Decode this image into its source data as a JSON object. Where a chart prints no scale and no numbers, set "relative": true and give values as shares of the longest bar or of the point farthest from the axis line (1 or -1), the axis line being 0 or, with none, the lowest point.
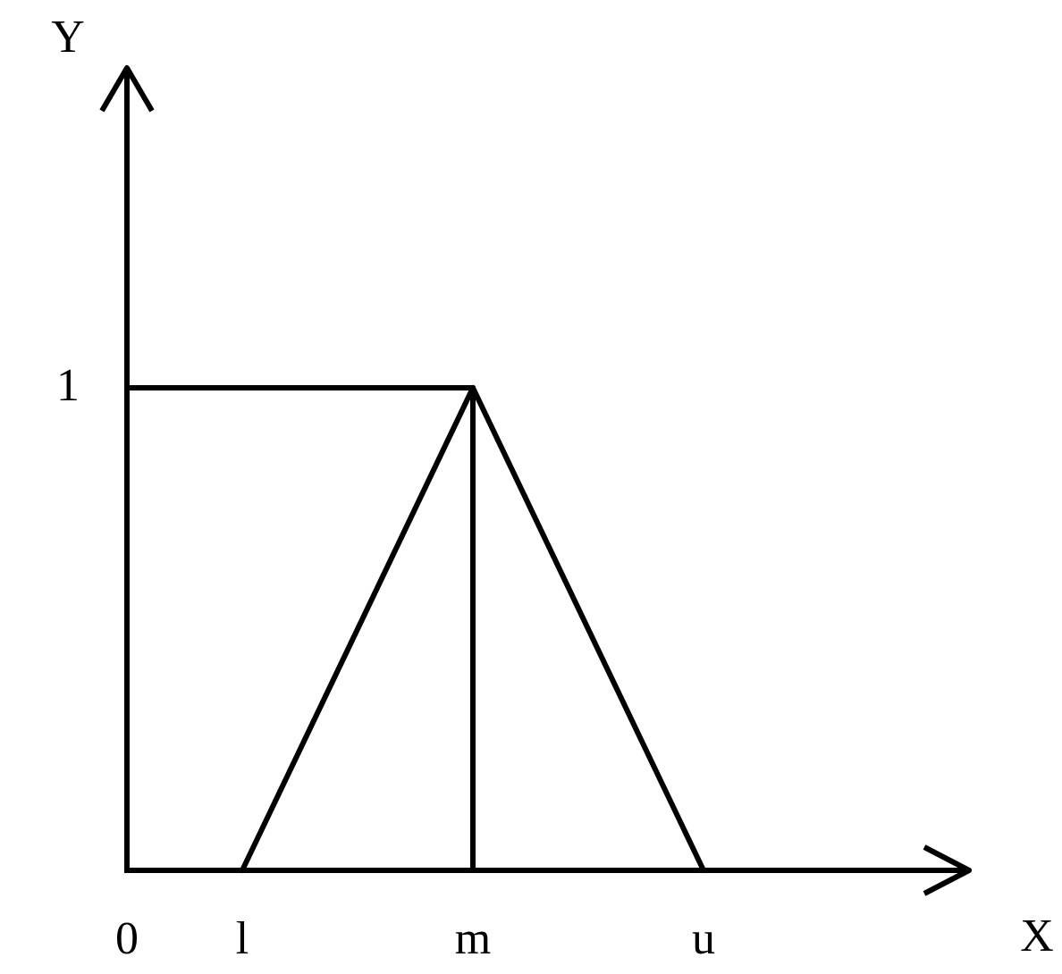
{
  "chart_data": {
    "type": "line",
    "relative": true,
    "xlabel": "X",
    "categories": [
      "0",
      "l",
      null,
      "m",
      null,
      "u",
      null,
      null
    ],
    "series": [
      {
        "color": "#000000",
        "x": [
          "l",
          "m",
          "u"
        ],
        "values": [
          0,
          1,
          0
        ]
      },
      {
        "color": "#000000",
        "x": [
          "0",
          "m",
          "m"
        ],
        "values": [
          1,
          1,
          0
        ]
      }
    ],
    "annotations": [
      "Y",
      "1"
    ]
  }
}
